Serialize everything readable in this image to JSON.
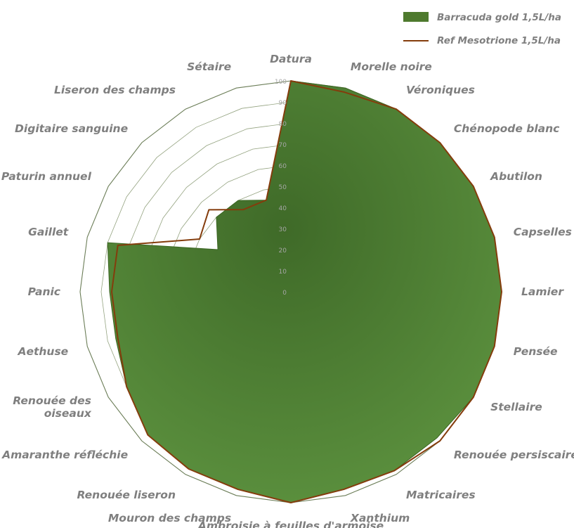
{
  "chart_data": {
    "type": "radar",
    "title": "",
    "categories": [
      "Datura",
      "Morelle noire",
      "Véroniques",
      "Chénopode blanc",
      "Abutilon",
      "Capselles",
      "Lamier",
      "Pensée",
      "Stellaire",
      "Renouée persiscaire",
      "Matricaires",
      "Xanthium",
      "Ambroisie à feuilles d'armoise",
      "Mouron des champs",
      "Renouée liseron",
      "Amaranthe réfléchie",
      "Renouée des oiseaux",
      "Aethuse",
      "Panic",
      "Gaillet",
      "Paturin annuel",
      "Digitaire sanguine",
      "Liseron des champs",
      "Sétaire"
    ],
    "category_label_lines": [
      [
        "Datura"
      ],
      [
        "Morelle noire"
      ],
      [
        "Véroniques"
      ],
      [
        "Chénopode blanc"
      ],
      [
        "Abutilon"
      ],
      [
        "Capselles"
      ],
      [
        "Lamier"
      ],
      [
        "Pensée"
      ],
      [
        "Stellaire"
      ],
      [
        "Renouée persiscaire"
      ],
      [
        "Matricaires"
      ],
      [
        "Xanthium"
      ],
      [
        "Ambroisie à feuilles d'armoise"
      ],
      [
        "Mouron des champs"
      ],
      [
        "Renouée liseron"
      ],
      [
        "Amaranthe réfléchie"
      ],
      [
        "Renouée des",
        "oiseaux"
      ],
      [
        "Aethuse"
      ],
      [
        "Panic"
      ],
      [
        "Gaillet"
      ],
      [
        "Paturin annuel"
      ],
      [
        "Digitaire sanguine"
      ],
      [
        "Liseron des champs"
      ],
      [
        "Sétaire"
      ]
    ],
    "r_range": [
      0,
      100
    ],
    "r_ticks": [
      0,
      10,
      20,
      30,
      40,
      50,
      60,
      70,
      80,
      90,
      100
    ],
    "grid": true,
    "legend_position": "top-right",
    "series": [
      {
        "name": "Barracuda gold 1,5L/ha",
        "style": "filled-area",
        "color": "#4e7a2e",
        "values": [
          100,
          100,
          100,
          100,
          100,
          100,
          100,
          100,
          100,
          98,
          98,
          97,
          100,
          97,
          97,
          96,
          90,
          86,
          86,
          90,
          40,
          50,
          50,
          45
        ]
      },
      {
        "name": "Ref Mesotrione 1,5L/ha",
        "style": "line",
        "color": "#843c0c",
        "values": [
          100,
          98,
          100,
          100,
          100,
          100,
          100,
          100,
          100,
          100,
          98,
          97,
          100,
          97,
          97,
          96,
          90,
          85,
          85,
          85,
          50,
          55,
          45,
          45
        ]
      }
    ]
  }
}
